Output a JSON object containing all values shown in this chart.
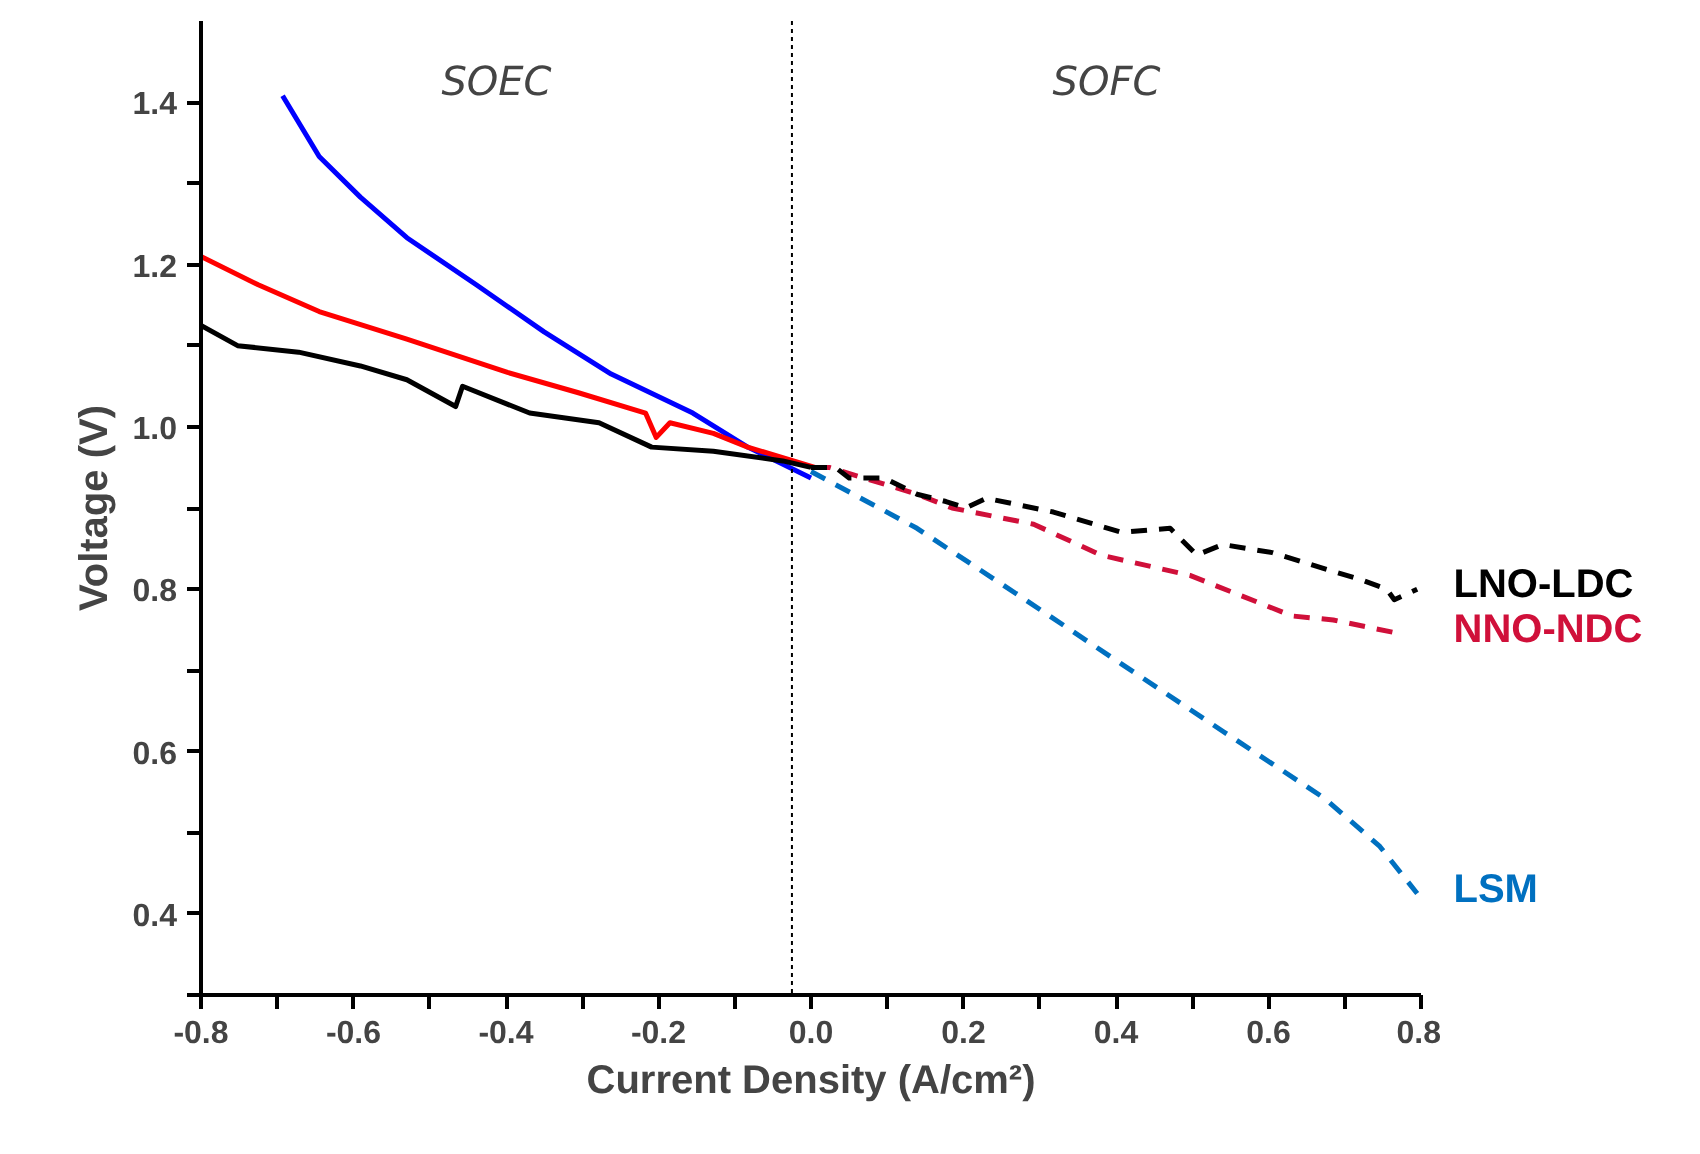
{
  "chart_data": {
    "type": "line",
    "xlabel": "Current Density (A/cm²)",
    "ylabel": "Voltage (V)",
    "xlim": [
      -0.8,
      0.8
    ],
    "ylim": [
      0.3,
      1.5
    ],
    "xticks": [
      -0.8,
      {
        "value": -0.7,
        "label": null
      },
      -0.6,
      {
        "value": -0.5,
        "label": null
      },
      -0.4,
      {
        "value": -0.3,
        "label": null
      },
      -0.2,
      {
        "value": -0.1,
        "label": null
      },
      {
        "value": 0,
        "label": "0.0"
      },
      {
        "value": 0.1,
        "label": null
      },
      0.2,
      {
        "value": 0.3,
        "label": null
      },
      0.4,
      {
        "value": 0.5,
        "label": null
      },
      0.6,
      {
        "value": 0.7,
        "label": null
      },
      0.8
    ],
    "yticks": [
      {
        "value": 0.3,
        "label": null
      },
      0.4,
      {
        "value": 0.5,
        "label": null
      },
      0.6,
      {
        "value": 0.7,
        "label": null
      },
      0.8,
      {
        "value": 0.9,
        "label": null
      },
      {
        "value": 1.0,
        "label": "1.0"
      },
      {
        "value": 1.1,
        "label": null
      },
      1.2,
      {
        "value": 1.3,
        "label": null
      },
      1.4
    ],
    "grid": false,
    "legend": false,
    "marker": "none",
    "ref_lines": [
      {
        "axis": "x",
        "value": -0.025,
        "color": "#000000",
        "line_style": "dotted"
      }
    ],
    "annotations": [
      "SOEC",
      "SOFC"
    ],
    "series": [
      {
        "color": "#0000ff",
        "line_style": "solid",
        "x": [
          -0.693,
          -0.645,
          -0.591,
          -0.53,
          -0.439,
          -0.35,
          -0.262,
          -0.155,
          -0.083,
          0.0
        ],
        "values": [
          1.408,
          1.333,
          1.283,
          1.233,
          1.175,
          1.117,
          1.065,
          1.017,
          0.975,
          0.937
        ]
      },
      {
        "name": "LSM",
        "color": "#0070c0",
        "line_style": "dashed",
        "x": [
          0.0,
          0.139,
          0.273,
          0.407,
          0.54,
          0.674,
          0.746,
          0.795
        ],
        "values": [
          0.945,
          0.875,
          0.792,
          0.708,
          0.625,
          0.542,
          0.483,
          0.425
        ]
      },
      {
        "color": "#ff0000",
        "line_style": "solid",
        "x": [
          -0.8,
          -0.725,
          -0.645,
          -0.53,
          -0.398,
          -0.305,
          -0.217,
          -0.203,
          -0.185,
          -0.128,
          -0.083,
          0.005
        ],
        "values": [
          1.21,
          1.175,
          1.142,
          1.108,
          1.067,
          1.042,
          1.017,
          0.987,
          1.005,
          0.992,
          0.975,
          0.95
        ]
      },
      {
        "name": "NNO-NDC",
        "color": "#d0103a",
        "line_style": "dashed",
        "x": [
          0.005,
          0.024,
          0.139,
          0.185,
          0.292,
          0.38,
          0.497,
          0.631,
          0.685,
          0.773
        ],
        "values": [
          0.95,
          0.95,
          0.917,
          0.9,
          0.88,
          0.842,
          0.817,
          0.767,
          0.762,
          0.745
        ]
      },
      {
        "color": "#000000",
        "line_style": "solid",
        "x": [
          -0.8,
          -0.752,
          -0.672,
          -0.591,
          -0.53,
          -0.466,
          -0.457,
          -0.369,
          -0.278,
          -0.209,
          -0.128,
          -0.037,
          0.0
        ],
        "values": [
          1.125,
          1.1,
          1.092,
          1.075,
          1.058,
          1.025,
          1.05,
          1.017,
          1.005,
          0.975,
          0.97,
          0.958,
          0.95
        ]
      },
      {
        "name": "LNO-LDC",
        "color": "#000000",
        "line_style": "dashed",
        "x": [
          0.0,
          0.032,
          0.05,
          0.096,
          0.139,
          0.177,
          0.203,
          0.23,
          0.318,
          0.407,
          0.471,
          0.506,
          0.54,
          0.605,
          0.674,
          0.72,
          0.755,
          0.765,
          0.795
        ],
        "values": [
          0.95,
          0.95,
          0.937,
          0.937,
          0.917,
          0.908,
          0.9,
          0.912,
          0.895,
          0.87,
          0.875,
          0.842,
          0.855,
          0.845,
          0.825,
          0.812,
          0.8,
          0.787,
          0.8
        ]
      }
    ]
  }
}
